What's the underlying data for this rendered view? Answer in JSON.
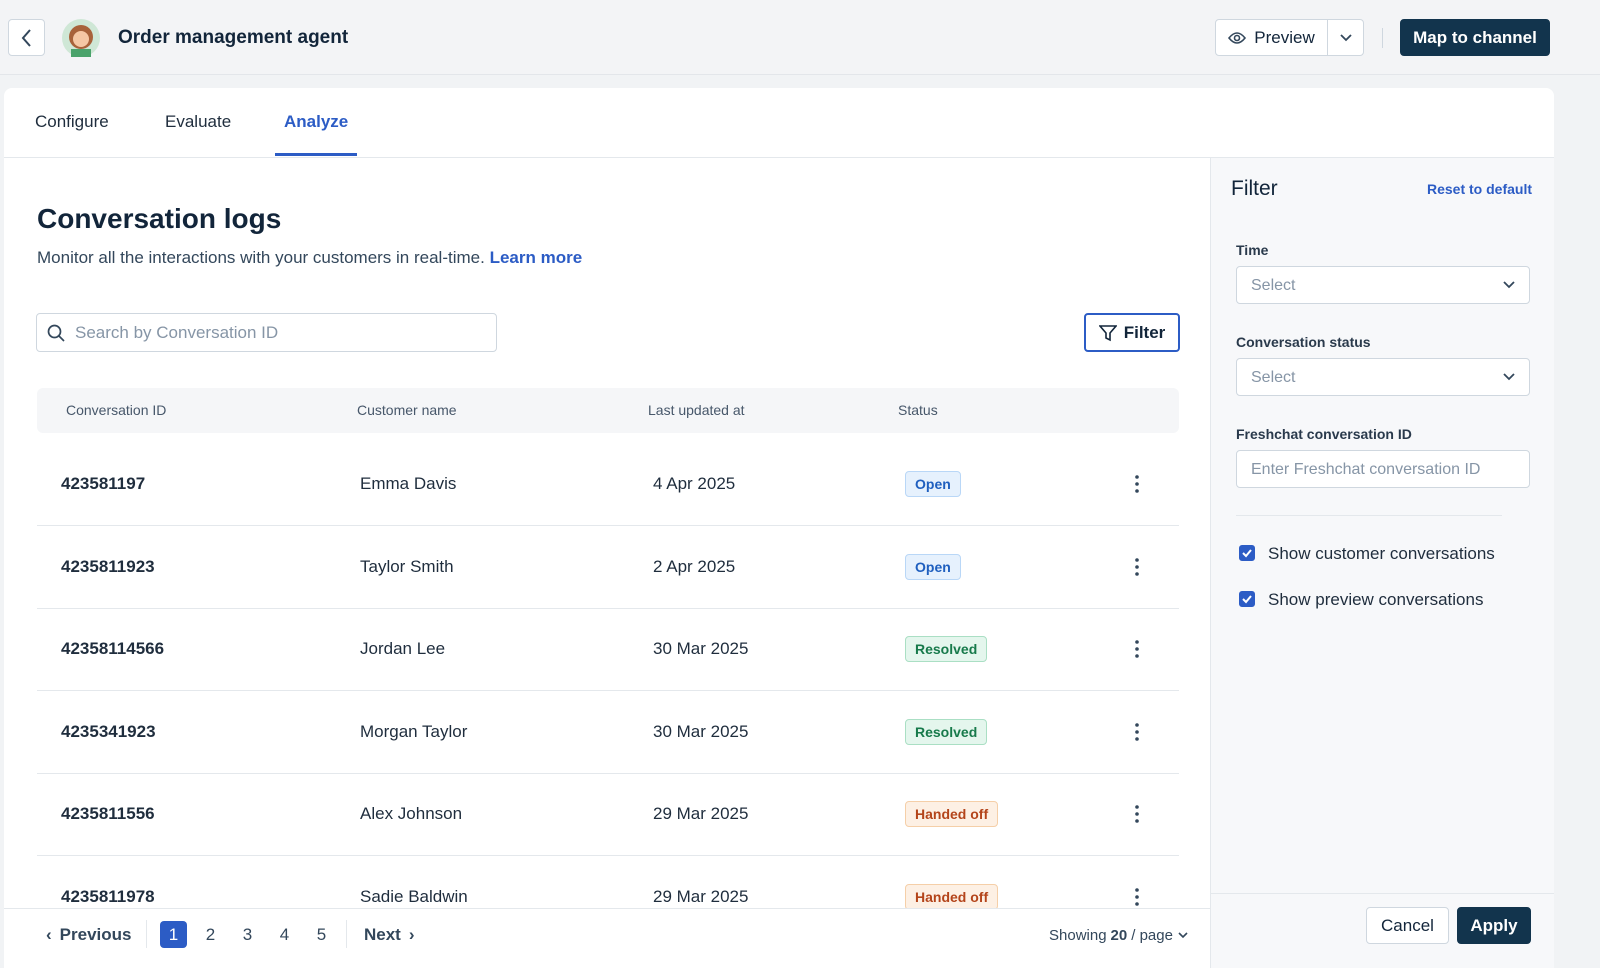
{
  "header": {
    "title": "Order management agent",
    "preview": "Preview",
    "map_button": "Map to channel"
  },
  "tabs": {
    "items": [
      "Configure",
      "Evaluate",
      "Analyze"
    ],
    "active": 2
  },
  "logs": {
    "title": "Conversation logs",
    "description": "Monitor all the interactions with your customers in real-time.",
    "link": "Learn more",
    "search_placeholder": "Search by Conversation ID",
    "filter_button": "Filter"
  },
  "table": {
    "columns": [
      "Conversation ID",
      "Customer name",
      "Last updated at",
      "Status"
    ],
    "rows": [
      [
        "423581197",
        "Emma Davis",
        "4 Apr 2025",
        "Open"
      ],
      [
        "4235811923",
        "Taylor Smith",
        "2 Apr 2025",
        "Open"
      ],
      [
        "42358114566",
        "Jordan Lee",
        "30 Mar 2025",
        "Resolved"
      ],
      [
        "4235341923",
        "Morgan Taylor",
        "30 Mar 2025",
        "Resolved"
      ],
      [
        "4235811556",
        "Alex Johnson",
        "29 Mar 2025",
        "Handed off"
      ],
      [
        "4235811978",
        "Sadie Baldwin",
        "29 Mar 2025",
        "Handed off"
      ]
    ],
    "status_colors": {
      "Open": {
        "bg": "#e6f1fd",
        "border": "#b9d7f7",
        "text": "#1f5fbf"
      },
      "Resolved": {
        "bg": "#e4f6ed",
        "border": "#aadfc4",
        "text": "#177a4b"
      },
      "Handed off": {
        "bg": "#fdf0e4",
        "border": "#f5cfa8",
        "text": "#b4441a"
      }
    }
  },
  "pagination": {
    "previous": "Previous",
    "pages": [
      "1",
      "2",
      "3",
      "4",
      "5"
    ],
    "current": 0,
    "next": "Next",
    "showing": "Showing",
    "page_size": "20",
    "per_page": "/ page"
  },
  "filter": {
    "title": "Filter",
    "reset": "Reset to default",
    "fields": [
      {
        "label": "Time",
        "placeholder": "Select",
        "dropdown": true
      },
      {
        "label": "Conversation status",
        "placeholder": "Select",
        "dropdown": true
      },
      {
        "label": "Freshchat conversation ID",
        "placeholder": "Enter Freshchat conversation ID",
        "dropdown": false
      }
    ],
    "checkboxes": [
      {
        "label": "Show customer conversations",
        "checked": true
      },
      {
        "label": "Show preview conversations",
        "checked": true
      }
    ],
    "cancel": "Cancel",
    "apply": "Apply"
  }
}
